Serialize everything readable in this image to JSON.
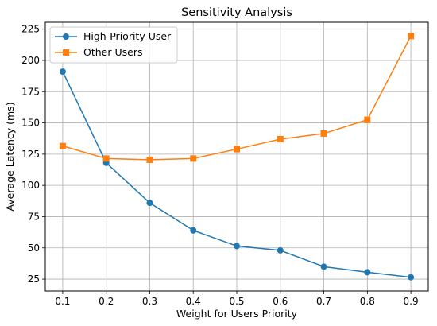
{
  "chart_data": {
    "type": "line",
    "title": "Sensitivity Analysis",
    "xlabel": "Weight for Users Priority",
    "ylabel": "Average Latency (ms)",
    "x": [
      0.1,
      0.2,
      0.3,
      0.4,
      0.5,
      0.6,
      0.7,
      0.8,
      0.9
    ],
    "xticks": [
      "0.1",
      "0.2",
      "0.3",
      "0.4",
      "0.5",
      "0.6",
      "0.7",
      "0.8",
      "0.9"
    ],
    "yticks": [
      25,
      50,
      75,
      100,
      125,
      150,
      175,
      200,
      225
    ],
    "xlim": [
      0.06,
      0.94
    ],
    "ylim": [
      15.5,
      230.5
    ],
    "grid": true,
    "legend_position": "top-left",
    "series": [
      {
        "name": "High-Priority User",
        "color": "#1f77b4",
        "marker": "circle",
        "values": [
          191,
          118,
          86,
          64,
          51.5,
          48,
          35,
          30.5,
          26.5
        ]
      },
      {
        "name": "Other Users",
        "color": "#ff7f0e",
        "marker": "square",
        "values": [
          131.5,
          121.5,
          120.5,
          121.5,
          129,
          137,
          141.5,
          152.5,
          219.5
        ]
      }
    ]
  }
}
